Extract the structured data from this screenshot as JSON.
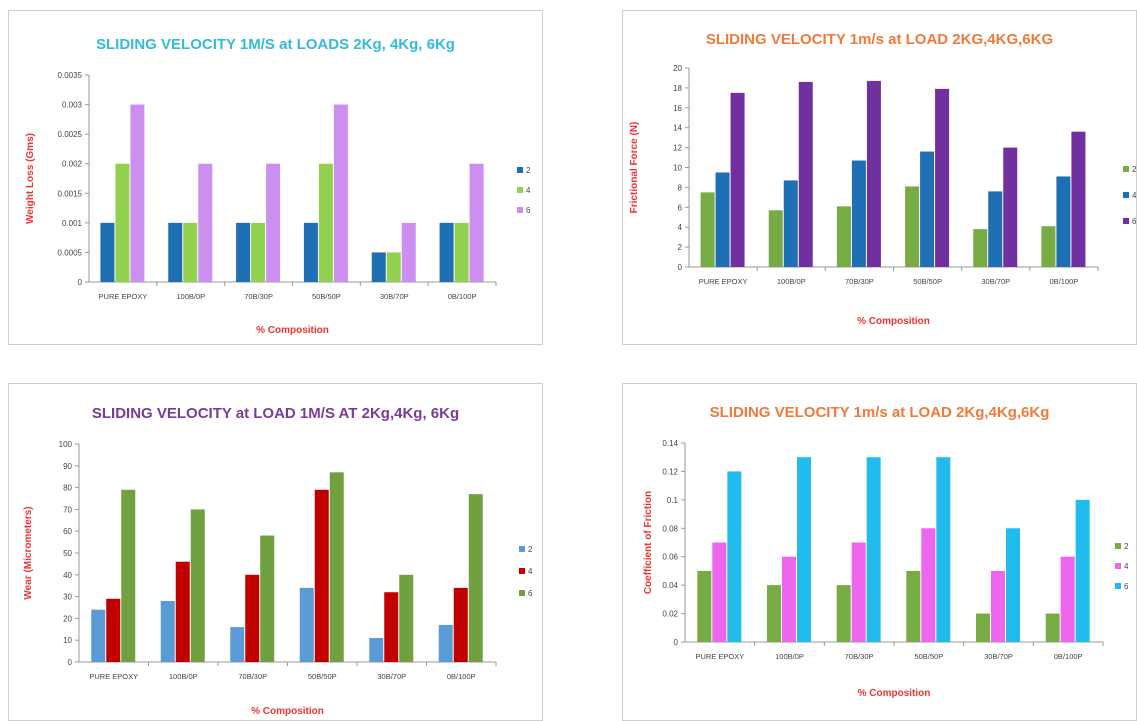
{
  "chart_data": [
    {
      "type": "bar",
      "title": "SLIDING VELOCITY 1M/S at LOADS 2Kg, 4Kg, 6Kg",
      "title_color": "#33bbdd",
      "xlabel": "% Composition",
      "ylabel": "Weight Loss (Gms)",
      "label_color": "#ee3333",
      "categories": [
        "PURE EPOXY",
        "100B/0P",
        "70B/30P",
        "50B/50P",
        "30B/70P",
        "0B/100P"
      ],
      "y_ticks": [
        "0",
        "0.0005",
        "0.001",
        "0.0015",
        "0.002",
        "0.0025",
        "0.003",
        "0.0035"
      ],
      "ylim": [
        0,
        0.0035
      ],
      "series": [
        {
          "name": "2",
          "color": "#1f6fb4",
          "values": [
            0.001,
            0.001,
            0.001,
            0.001,
            0.0005,
            0.001
          ]
        },
        {
          "name": "4",
          "color": "#92d050",
          "values": [
            0.002,
            0.001,
            0.001,
            0.002,
            0.0005,
            0.001
          ]
        },
        {
          "name": "6",
          "color": "#cc8ff0",
          "values": [
            0.003,
            0.002,
            0.002,
            0.003,
            0.001,
            0.002
          ]
        }
      ],
      "grid": false,
      "legend": "right"
    },
    {
      "type": "bar",
      "title": "SLIDING VELOCITY 1m/s at LOAD 2KG,4KG,6KG",
      "title_color": "#f07a3a",
      "xlabel": "% Composition",
      "ylabel": "Frictional Force (N)",
      "label_color": "#ee3333",
      "categories": [
        "PURE EPOXY",
        "100B/0P",
        "70B/30P",
        "50B/50P",
        "30B/70P",
        "0B/100P"
      ],
      "y_ticks": [
        "0",
        "2",
        "4",
        "6",
        "8",
        "10",
        "12",
        "14",
        "16",
        "18",
        "20"
      ],
      "ylim": [
        0,
        20
      ],
      "series": [
        {
          "name": "2",
          "color": "#77ac44",
          "values": [
            7.5,
            5.7,
            6.1,
            8.1,
            3.8,
            4.1
          ]
        },
        {
          "name": "4",
          "color": "#1f6fb4",
          "values": [
            9.5,
            8.7,
            10.7,
            11.6,
            7.6,
            9.1
          ]
        },
        {
          "name": "6",
          "color": "#7030a0",
          "values": [
            17.5,
            18.6,
            18.7,
            17.9,
            12.0,
            13.6
          ]
        }
      ],
      "grid": false,
      "legend": "right"
    },
    {
      "type": "bar",
      "title": "SLIDING VELOCITY at LOAD 1M/S AT 2Kg,4Kg, 6Kg",
      "title_color": "#7a3c9a",
      "xlabel": "% Composition",
      "ylabel": "Wear (Micrometers)",
      "label_color": "#ee3333",
      "categories": [
        "PURE EPOXY",
        "100B/0P",
        "70B/30P",
        "50B/50P",
        "30B/70P",
        "0B/100P"
      ],
      "y_ticks": [
        "0",
        "10",
        "20",
        "30",
        "40",
        "50",
        "60",
        "70",
        "80",
        "90",
        "100"
      ],
      "ylim": [
        0,
        100
      ],
      "series": [
        {
          "name": "2",
          "color": "#5b9bd5",
          "values": [
            24,
            28,
            16,
            34,
            11,
            17
          ]
        },
        {
          "name": "4",
          "color": "#c00000",
          "values": [
            29,
            46,
            40,
            79,
            32,
            34
          ]
        },
        {
          "name": "6",
          "color": "#70a040",
          "values": [
            79,
            70,
            58,
            87,
            40,
            77
          ]
        }
      ],
      "grid": false,
      "legend": "right"
    },
    {
      "type": "bar",
      "title": "SLIDING VELOCITY 1m/s at LOAD 2Kg,4Kg,6Kg",
      "title_color": "#f07a3a",
      "xlabel": "% Composition",
      "ylabel": "Coefficient of Friction",
      "label_color": "#ee3333",
      "categories": [
        "PURE EPOXY",
        "100B/0P",
        "70B/30P",
        "50B/50P",
        "30B/70P",
        "0B/100P"
      ],
      "y_ticks": [
        "0",
        "0.02",
        "0.04",
        "0.06",
        "0.08",
        "0.1",
        "0.12",
        "0.14"
      ],
      "ylim": [
        0,
        0.14
      ],
      "series": [
        {
          "name": "2",
          "color": "#77ac44",
          "values": [
            0.05,
            0.04,
            0.04,
            0.05,
            0.02,
            0.02
          ]
        },
        {
          "name": "4",
          "color": "#ee66ee",
          "values": [
            0.07,
            0.06,
            0.07,
            0.08,
            0.05,
            0.06
          ]
        },
        {
          "name": "6",
          "color": "#22bbee",
          "values": [
            0.12,
            0.13,
            0.13,
            0.13,
            0.08,
            0.1
          ]
        }
      ],
      "grid": false,
      "legend": "right"
    }
  ]
}
